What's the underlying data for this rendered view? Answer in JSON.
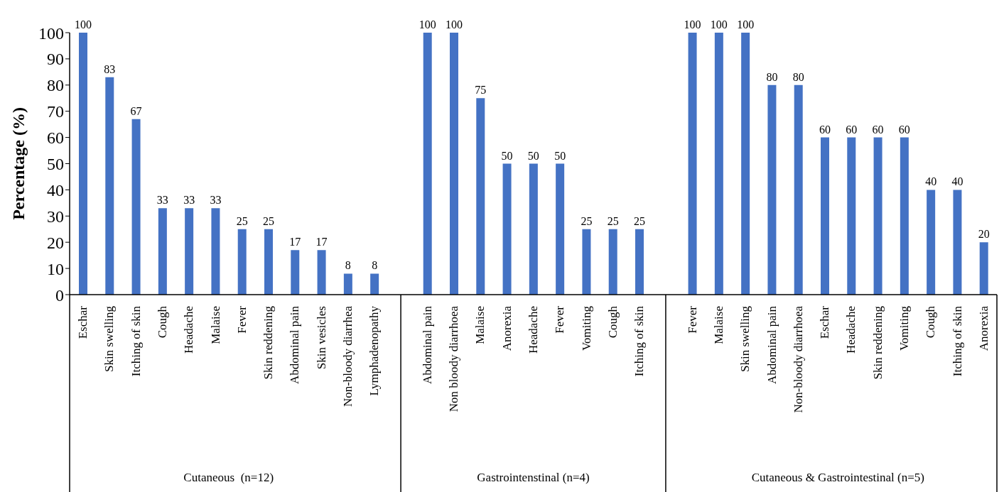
{
  "chart_data": {
    "type": "bar",
    "ylabel": "Percentage (%)",
    "categories": [
      "Eschar",
      "Skin swelling",
      "Itching of skin",
      "Cough",
      "Headache",
      "Malaise",
      "Fever",
      "Skin reddening",
      "Abdominal pain",
      "Skin vesicles",
      "Non-bloody diarrhea",
      "Lymphadenopathy",
      null,
      "Abdominal pain",
      "Non bloody diarrhoea",
      "Malaise",
      "Anorexia",
      "Headache",
      "Fever",
      "Vomiting",
      "Cough",
      "Itching of skin",
      null,
      "Fever",
      "Malaise",
      "Skin swelling",
      "Abdominal pain",
      "Non-bloody diarrhoea",
      "Eschar",
      "Headache",
      "Skin reddening",
      "Vomiting",
      "Cough",
      "Itching of skin",
      "Anorexia"
    ],
    "values": [
      100,
      83,
      67,
      33,
      33,
      33,
      25,
      25,
      17,
      17,
      8,
      8,
      null,
      100,
      100,
      75,
      50,
      50,
      50,
      25,
      25,
      25,
      null,
      100,
      100,
      100,
      80,
      80,
      60,
      60,
      60,
      60,
      40,
      40,
      20
    ],
    "color": "#4472c4",
    "ylim": [
      0,
      100
    ],
    "yticks": [
      0,
      10,
      20,
      30,
      40,
      50,
      60,
      70,
      80,
      90,
      100
    ],
    "data_labels": true,
    "annotations": [
      "Cutaneous  (n=12)",
      "Gastrointenstinal (n=4)",
      "Cutaneous & Gastrointestinal (n=5)"
    ]
  }
}
